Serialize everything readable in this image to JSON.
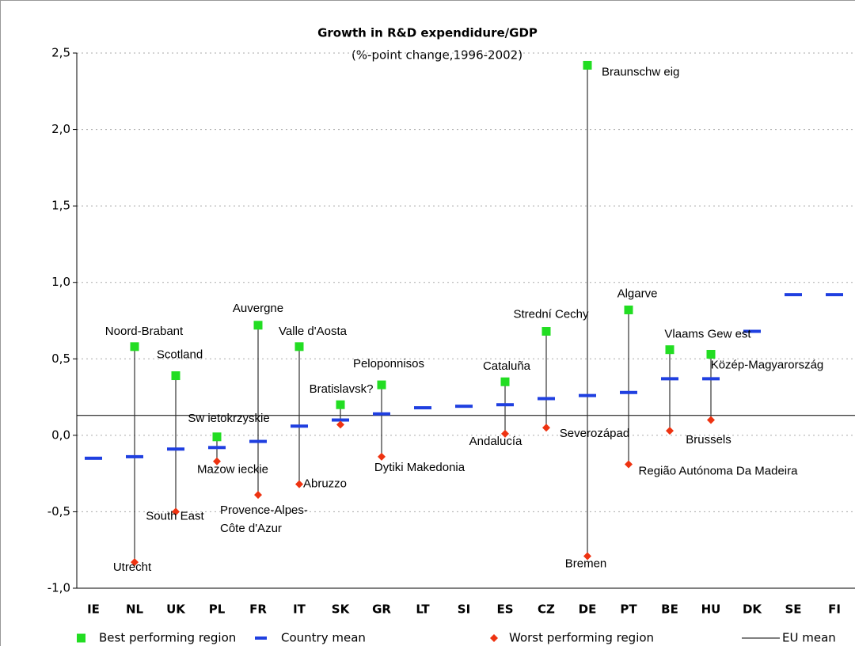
{
  "chart_data": {
    "type": "dot",
    "title": "Growth in R&D expendidure/GDP",
    "subtitle": "(%-point change,1996-2002)",
    "categories": [
      "IE",
      "NL",
      "UK",
      "PL",
      "FR",
      "IT",
      "SK",
      "GR",
      "LT",
      "SI",
      "ES",
      "CZ",
      "DE",
      "PT",
      "BE",
      "HU",
      "DK",
      "SE",
      "FI"
    ],
    "series": [
      {
        "name": "Best performing region",
        "color": "#22dd22",
        "values": [
          null,
          0.58,
          0.39,
          -0.01,
          0.72,
          0.58,
          0.2,
          0.33,
          null,
          null,
          0.35,
          0.68,
          2.42,
          0.82,
          0.56,
          0.53,
          null,
          null,
          null
        ],
        "point_labels": [
          null,
          "Noord-Brabant",
          "Scotland",
          "Sw ietokrzyskie",
          "Auvergne",
          "Valle d'Aosta",
          "Bratislavsk?",
          "Peloponnisos",
          null,
          null,
          "Cataluña",
          "Strední Cechy",
          "Braunschw eig",
          "Algarve",
          "Vlaams Gew est",
          "Közép-Magyarország",
          null,
          null,
          null
        ]
      },
      {
        "name": "Country mean",
        "color": "#1f3fe0",
        "values": [
          -0.15,
          -0.14,
          -0.09,
          -0.08,
          -0.04,
          0.06,
          0.1,
          0.14,
          0.18,
          0.19,
          0.2,
          0.24,
          0.26,
          0.28,
          0.37,
          0.37,
          0.68,
          0.92,
          0.92
        ]
      },
      {
        "name": "Worst performing region",
        "color": "#ee3311",
        "values": [
          null,
          -0.83,
          -0.5,
          -0.17,
          -0.39,
          -0.32,
          0.07,
          -0.14,
          null,
          null,
          0.01,
          0.05,
          -0.79,
          -0.19,
          0.03,
          0.1,
          null,
          null,
          null
        ],
        "point_labels": [
          null,
          "Utrecht",
          "South East",
          "Mazow ieckie",
          "Provence-Alpes-Côte d'Azur",
          "Abruzzo",
          null,
          "Dytiki Makedonia",
          null,
          null,
          "Andalucía",
          "Severozápad",
          "Bremen",
          "Região Autónoma Da Madeira",
          "Brussels",
          null,
          null,
          null,
          null
        ]
      }
    ],
    "reference_line": {
      "name": "EU mean",
      "value": 0.13,
      "color": "#000000"
    },
    "ylim": [
      -1.0,
      2.5
    ],
    "yticks": [
      {
        "value": -1.0,
        "label": "-1,0"
      },
      {
        "value": -0.5,
        "label": "-0,5"
      },
      {
        "value": 0.0,
        "label": "0,0"
      },
      {
        "value": 0.5,
        "label": "0,5"
      },
      {
        "value": 1.0,
        "label": "1,0"
      },
      {
        "value": 1.5,
        "label": "1,5"
      },
      {
        "value": 2.0,
        "label": "2,0"
      },
      {
        "value": 2.5,
        "label": "2,5"
      }
    ],
    "grid": true
  }
}
